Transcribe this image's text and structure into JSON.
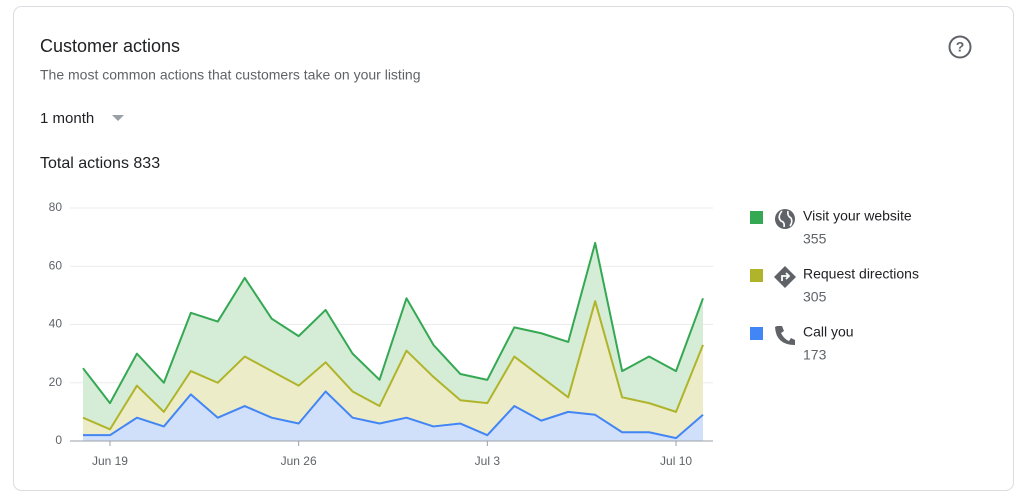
{
  "chart_data": {
    "type": "stacked_area",
    "title": "Customer actions",
    "subtitle": "The most common actions that customers take on your listing",
    "period": "1 month",
    "total_label": "Total actions",
    "total": 833,
    "categories": [
      null,
      "Jun 19",
      null,
      null,
      null,
      null,
      null,
      null,
      "Jun 26",
      null,
      null,
      null,
      null,
      null,
      null,
      "Jul 3",
      null,
      null,
      null,
      null,
      null,
      null,
      "Jul 10",
      null
    ],
    "series": [
      {
        "name": "Visit your website",
        "total": 355,
        "color": "#34a853",
        "fill": "#d5ecd6",
        "values": [
          17,
          9,
          11,
          10,
          20,
          21,
          27,
          18,
          17,
          18,
          13,
          9,
          18,
          11,
          9,
          8,
          10,
          15,
          19,
          20,
          9,
          16,
          14,
          16
        ]
      },
      {
        "name": "Request directions",
        "total": 305,
        "color": "#afb42b",
        "fill": "#edecc8",
        "values": [
          6,
          2,
          11,
          5,
          8,
          12,
          17,
          16,
          13,
          10,
          9,
          6,
          23,
          17,
          8,
          11,
          17,
          15,
          5,
          39,
          12,
          10,
          9,
          24
        ]
      },
      {
        "name": "Call you",
        "total": 173,
        "color": "#4285f4",
        "fill": "#d0e0fb",
        "values": [
          2,
          2,
          8,
          5,
          16,
          8,
          12,
          8,
          6,
          17,
          8,
          6,
          8,
          5,
          6,
          2,
          12,
          7,
          10,
          9,
          3,
          3,
          1,
          9
        ]
      }
    ],
    "ylim": [
      0,
      80
    ],
    "yticks": [
      0,
      20,
      40,
      60,
      80
    ],
    "grid": true
  }
}
